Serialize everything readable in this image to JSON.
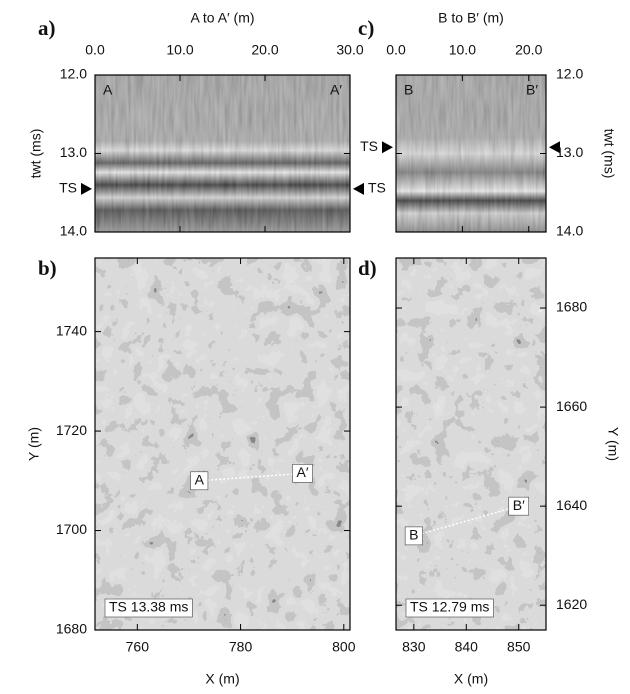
{
  "chart_data": [
    {
      "type": "section",
      "panel": "a)",
      "title": "A to A′ (m)",
      "ylabel": "twt (ms)",
      "x_axis": "top",
      "y_axis": "left",
      "xlim": [
        0,
        30
      ],
      "xticks": [
        {
          "value": 0,
          "label": "0.0"
        },
        {
          "value": 10,
          "label": "10.0"
        },
        {
          "value": 20,
          "label": "20.0"
        },
        {
          "value": 30,
          "label": "30.0"
        }
      ],
      "ylim": [
        14,
        12
      ],
      "yticks": [
        {
          "value": 12,
          "label": "12.0"
        },
        {
          "value": 13,
          "label": "13.0"
        },
        {
          "value": 14,
          "label": "14.0"
        }
      ],
      "ends": [
        "A",
        "A′"
      ],
      "markers": [
        {
          "label": "TS",
          "value": 13.45,
          "side": "left"
        },
        {
          "label": "TS",
          "value": 13.45,
          "side": "right"
        }
      ]
    },
    {
      "type": "map",
      "panel": "b)",
      "xlabel": "X (m)",
      "ylabel": "Y (m)",
      "x_axis": "bottom",
      "y_axis": "left",
      "xlim": [
        751.8,
        801.2
      ],
      "xticks": [
        760,
        780,
        800
      ],
      "ylim": [
        1680,
        1754.8
      ],
      "yticks": [
        1680,
        1700,
        1720,
        1740
      ],
      "annotation": "TS 13.38 ms",
      "profile": [
        {
          "label": "A",
          "x": 772,
          "y": 1710
        },
        {
          "label": "A′",
          "x": 792,
          "y": 1711.5
        }
      ]
    },
    {
      "type": "section",
      "panel": "c)",
      "title": "B to B′ (m)",
      "ylabel": "twt (ms)",
      "x_axis": "top",
      "y_axis": "right",
      "xlim": [
        0,
        22.6
      ],
      "xticks": [
        {
          "value": 0,
          "label": "0.0"
        },
        {
          "value": 10,
          "label": "10.0"
        },
        {
          "value": 20,
          "label": "20.0"
        }
      ],
      "ylim": [
        14,
        12
      ],
      "yticks": [
        {
          "value": 12,
          "label": "12.0"
        },
        {
          "value": 13,
          "label": "13.0"
        },
        {
          "value": 14,
          "label": "14.0"
        }
      ],
      "ends": [
        "B",
        "B′"
      ],
      "markers": [
        {
          "label": "TS",
          "value": 12.92,
          "side": "left"
        },
        {
          "label": null,
          "value": 12.92,
          "side": "right"
        }
      ]
    },
    {
      "type": "map",
      "panel": "d)",
      "xlabel": "X (m)",
      "ylabel": "Y (m)",
      "x_axis": "bottom",
      "y_axis": "right",
      "xlim": [
        826.6,
        855.2
      ],
      "xticks": [
        830,
        840,
        850
      ],
      "ylim": [
        1615,
        1690.1
      ],
      "yticks": [
        1620,
        1640,
        1660,
        1680
      ],
      "annotation": "TS 12.79 ms",
      "profile": [
        {
          "label": "B",
          "x": 830,
          "y": 1634
        },
        {
          "label": "B′",
          "x": 850,
          "y": 1640
        }
      ]
    }
  ]
}
